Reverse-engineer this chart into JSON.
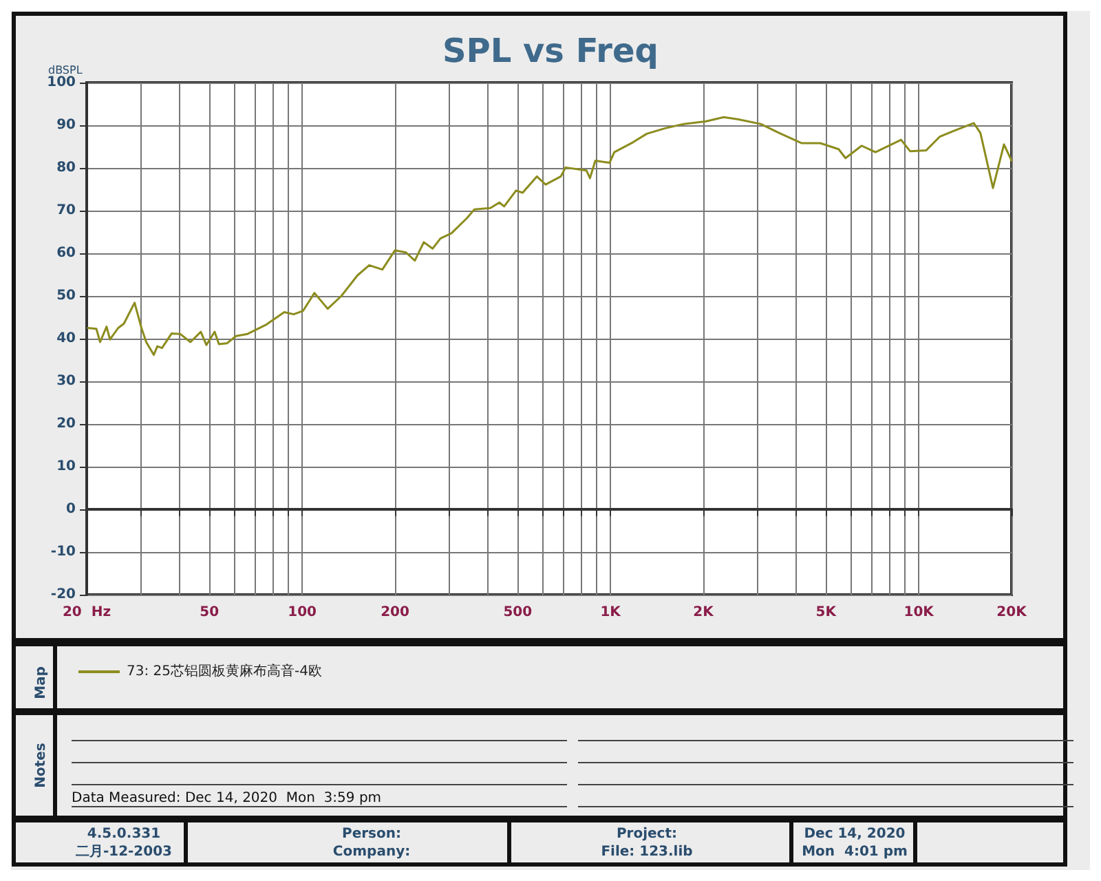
{
  "chart_data": {
    "type": "line",
    "title": "SPL vs Freq",
    "ylabel": "dBSPL",
    "log": "x",
    "grid": true,
    "legend": "bottom",
    "marker": "none",
    "line_style": "solid",
    "xlim": [
      20,
      20000
    ],
    "xticks": [
      {
        "value": 20,
        "label": "20  Hz"
      },
      {
        "value": 30,
        "label": null
      },
      {
        "value": 40,
        "label": null
      },
      50,
      {
        "value": 60,
        "label": null
      },
      {
        "value": 70,
        "label": null
      },
      {
        "value": 80,
        "label": null
      },
      {
        "value": 90,
        "label": null
      },
      100,
      200,
      {
        "value": 300,
        "label": null
      },
      {
        "value": 400,
        "label": null
      },
      500,
      {
        "value": 600,
        "label": null
      },
      {
        "value": 700,
        "label": null
      },
      {
        "value": 800,
        "label": null
      },
      {
        "value": 900,
        "label": null
      },
      {
        "value": 1000,
        "label": "1K"
      },
      {
        "value": 2000,
        "label": "2K"
      },
      {
        "value": 3000,
        "label": null
      },
      {
        "value": 4000,
        "label": null
      },
      {
        "value": 5000,
        "label": "5K"
      },
      {
        "value": 6000,
        "label": null
      },
      {
        "value": 7000,
        "label": null
      },
      {
        "value": 8000,
        "label": null
      },
      {
        "value": 9000,
        "label": null
      },
      {
        "value": 10000,
        "label": "10K"
      },
      {
        "value": 20000,
        "label": "20K"
      }
    ],
    "ylim": [
      -20,
      100
    ],
    "yticks": [
      -20,
      -10,
      0,
      10,
      20,
      30,
      40,
      50,
      60,
      70,
      80,
      90,
      100
    ],
    "series": [
      {
        "name": "73: 25芯铝圆板黄麻布高音-4欧",
        "color": "#8c8c1e",
        "x": [
          20.2,
          21.5,
          22.1,
          23.2,
          23.8,
          25.3,
          26.4,
          28.6,
          30.1,
          31.2,
          33.0,
          33.9,
          35.1,
          37.7,
          40.2,
          43.4,
          46.9,
          48.9,
          52.0,
          53.7,
          57.0,
          61.0,
          66.5,
          76.1,
          87.5,
          93.9,
          100.6,
          109.6,
          121,
          134,
          151,
          165,
          182,
          200,
          217,
          232,
          248,
          265,
          281,
          305,
          343,
          362,
          408,
          436,
          452,
          494,
          519,
          577,
          616,
          690,
          715,
          836,
          858,
          893,
          993,
          1029,
          1182,
          1311,
          1504,
          1728,
          2032,
          2330,
          2587,
          3072,
          3523,
          4177,
          4794,
          5498,
          5786,
          6528,
          7236,
          8765,
          9385,
          10560,
          11690,
          13000,
          15080,
          15850,
          17410,
          18900,
          20000
        ],
        "values": [
          42.5,
          42.3,
          39.2,
          42.8,
          39.8,
          42.5,
          43.5,
          48.4,
          42.5,
          39.2,
          36.2,
          38.2,
          37.8,
          41.2,
          41.1,
          39.2,
          41.6,
          38.5,
          41.6,
          38.7,
          38.9,
          40.6,
          41.1,
          43.2,
          46.2,
          45.7,
          46.5,
          50.7,
          47.0,
          50.0,
          54.8,
          57.2,
          56.2,
          60.7,
          60.2,
          58.3,
          62.6,
          61.1,
          63.5,
          64.7,
          68.3,
          70.3,
          70.6,
          71.9,
          71.0,
          74.7,
          74.2,
          78.0,
          76.1,
          78.0,
          80.1,
          79.4,
          77.6,
          81.7,
          81.2,
          83.7,
          86.0,
          88.0,
          89.3,
          90.3,
          90.9,
          91.9,
          91.4,
          90.3,
          88.2,
          85.8,
          85.8,
          84.4,
          82.3,
          85.2,
          83.7,
          86.6,
          83.9,
          84.1,
          87.3,
          88.7,
          90.5,
          88.2,
          75.3,
          85.5,
          81.7
        ]
      }
    ],
    "annotations": [
      "Map",
      "Notes",
      "Data Measured: Dec 14, 2020  Mon  3:59 pm",
      "4.5.0.331",
      "二月-12-2003",
      "Person:",
      "Company:",
      "Project:",
      "File: 123.lib",
      "Dec 14, 2020",
      "Mon  4:01 pm"
    ]
  }
}
